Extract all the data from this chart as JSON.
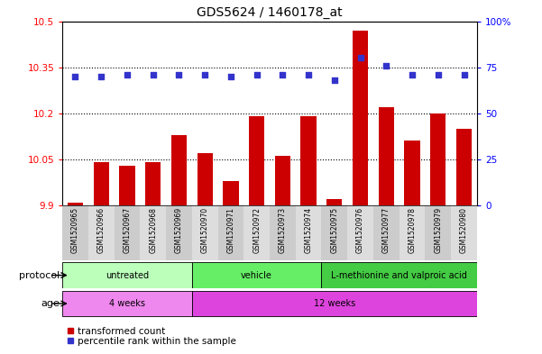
{
  "title": "GDS5624 / 1460178_at",
  "samples": [
    "GSM1520965",
    "GSM1520966",
    "GSM1520967",
    "GSM1520968",
    "GSM1520969",
    "GSM1520970",
    "GSM1520971",
    "GSM1520972",
    "GSM1520973",
    "GSM1520974",
    "GSM1520975",
    "GSM1520976",
    "GSM1520977",
    "GSM1520978",
    "GSM1520979",
    "GSM1520980"
  ],
  "bar_values": [
    9.91,
    10.04,
    10.03,
    10.04,
    10.13,
    10.07,
    9.98,
    10.19,
    10.06,
    10.19,
    9.92,
    10.47,
    10.22,
    10.11,
    10.2,
    10.15
  ],
  "dot_values": [
    70,
    70,
    71,
    71,
    71,
    71,
    70,
    71,
    71,
    71,
    68,
    80,
    76,
    71,
    71,
    71
  ],
  "bar_color": "#cc0000",
  "dot_color": "#3333cc",
  "ylim_left": [
    9.9,
    10.5
  ],
  "ylim_right": [
    0,
    100
  ],
  "yticks_left": [
    9.9,
    10.05,
    10.2,
    10.35,
    10.5
  ],
  "yticks_right": [
    0,
    25,
    50,
    75,
    100
  ],
  "ytick_labels_left": [
    "9.9",
    "10.05",
    "10.2",
    "10.35",
    "10.5"
  ],
  "ytick_labels_right": [
    "0",
    "25",
    "50",
    "75",
    "100%"
  ],
  "grid_values": [
    10.05,
    10.2,
    10.35
  ],
  "protocol_groups": [
    {
      "label": "untreated",
      "start": 0,
      "end": 4,
      "color": "#bbffbb"
    },
    {
      "label": "vehicle",
      "start": 5,
      "end": 9,
      "color": "#66ee66"
    },
    {
      "label": "L-methionine and valproic acid",
      "start": 10,
      "end": 15,
      "color": "#44cc44"
    }
  ],
  "age_groups": [
    {
      "label": "4 weeks",
      "start": 0,
      "end": 4,
      "color": "#ee88ee"
    },
    {
      "label": "12 weeks",
      "start": 5,
      "end": 15,
      "color": "#dd44dd"
    }
  ],
  "protocol_label": "protocol",
  "age_label": "age",
  "legend_bar": "transformed count",
  "legend_dot": "percentile rank within the sample",
  "bar_baseline": 9.9,
  "xlim": [
    -0.5,
    15.5
  ],
  "bg_colors": [
    "#cccccc",
    "#dddddd"
  ]
}
